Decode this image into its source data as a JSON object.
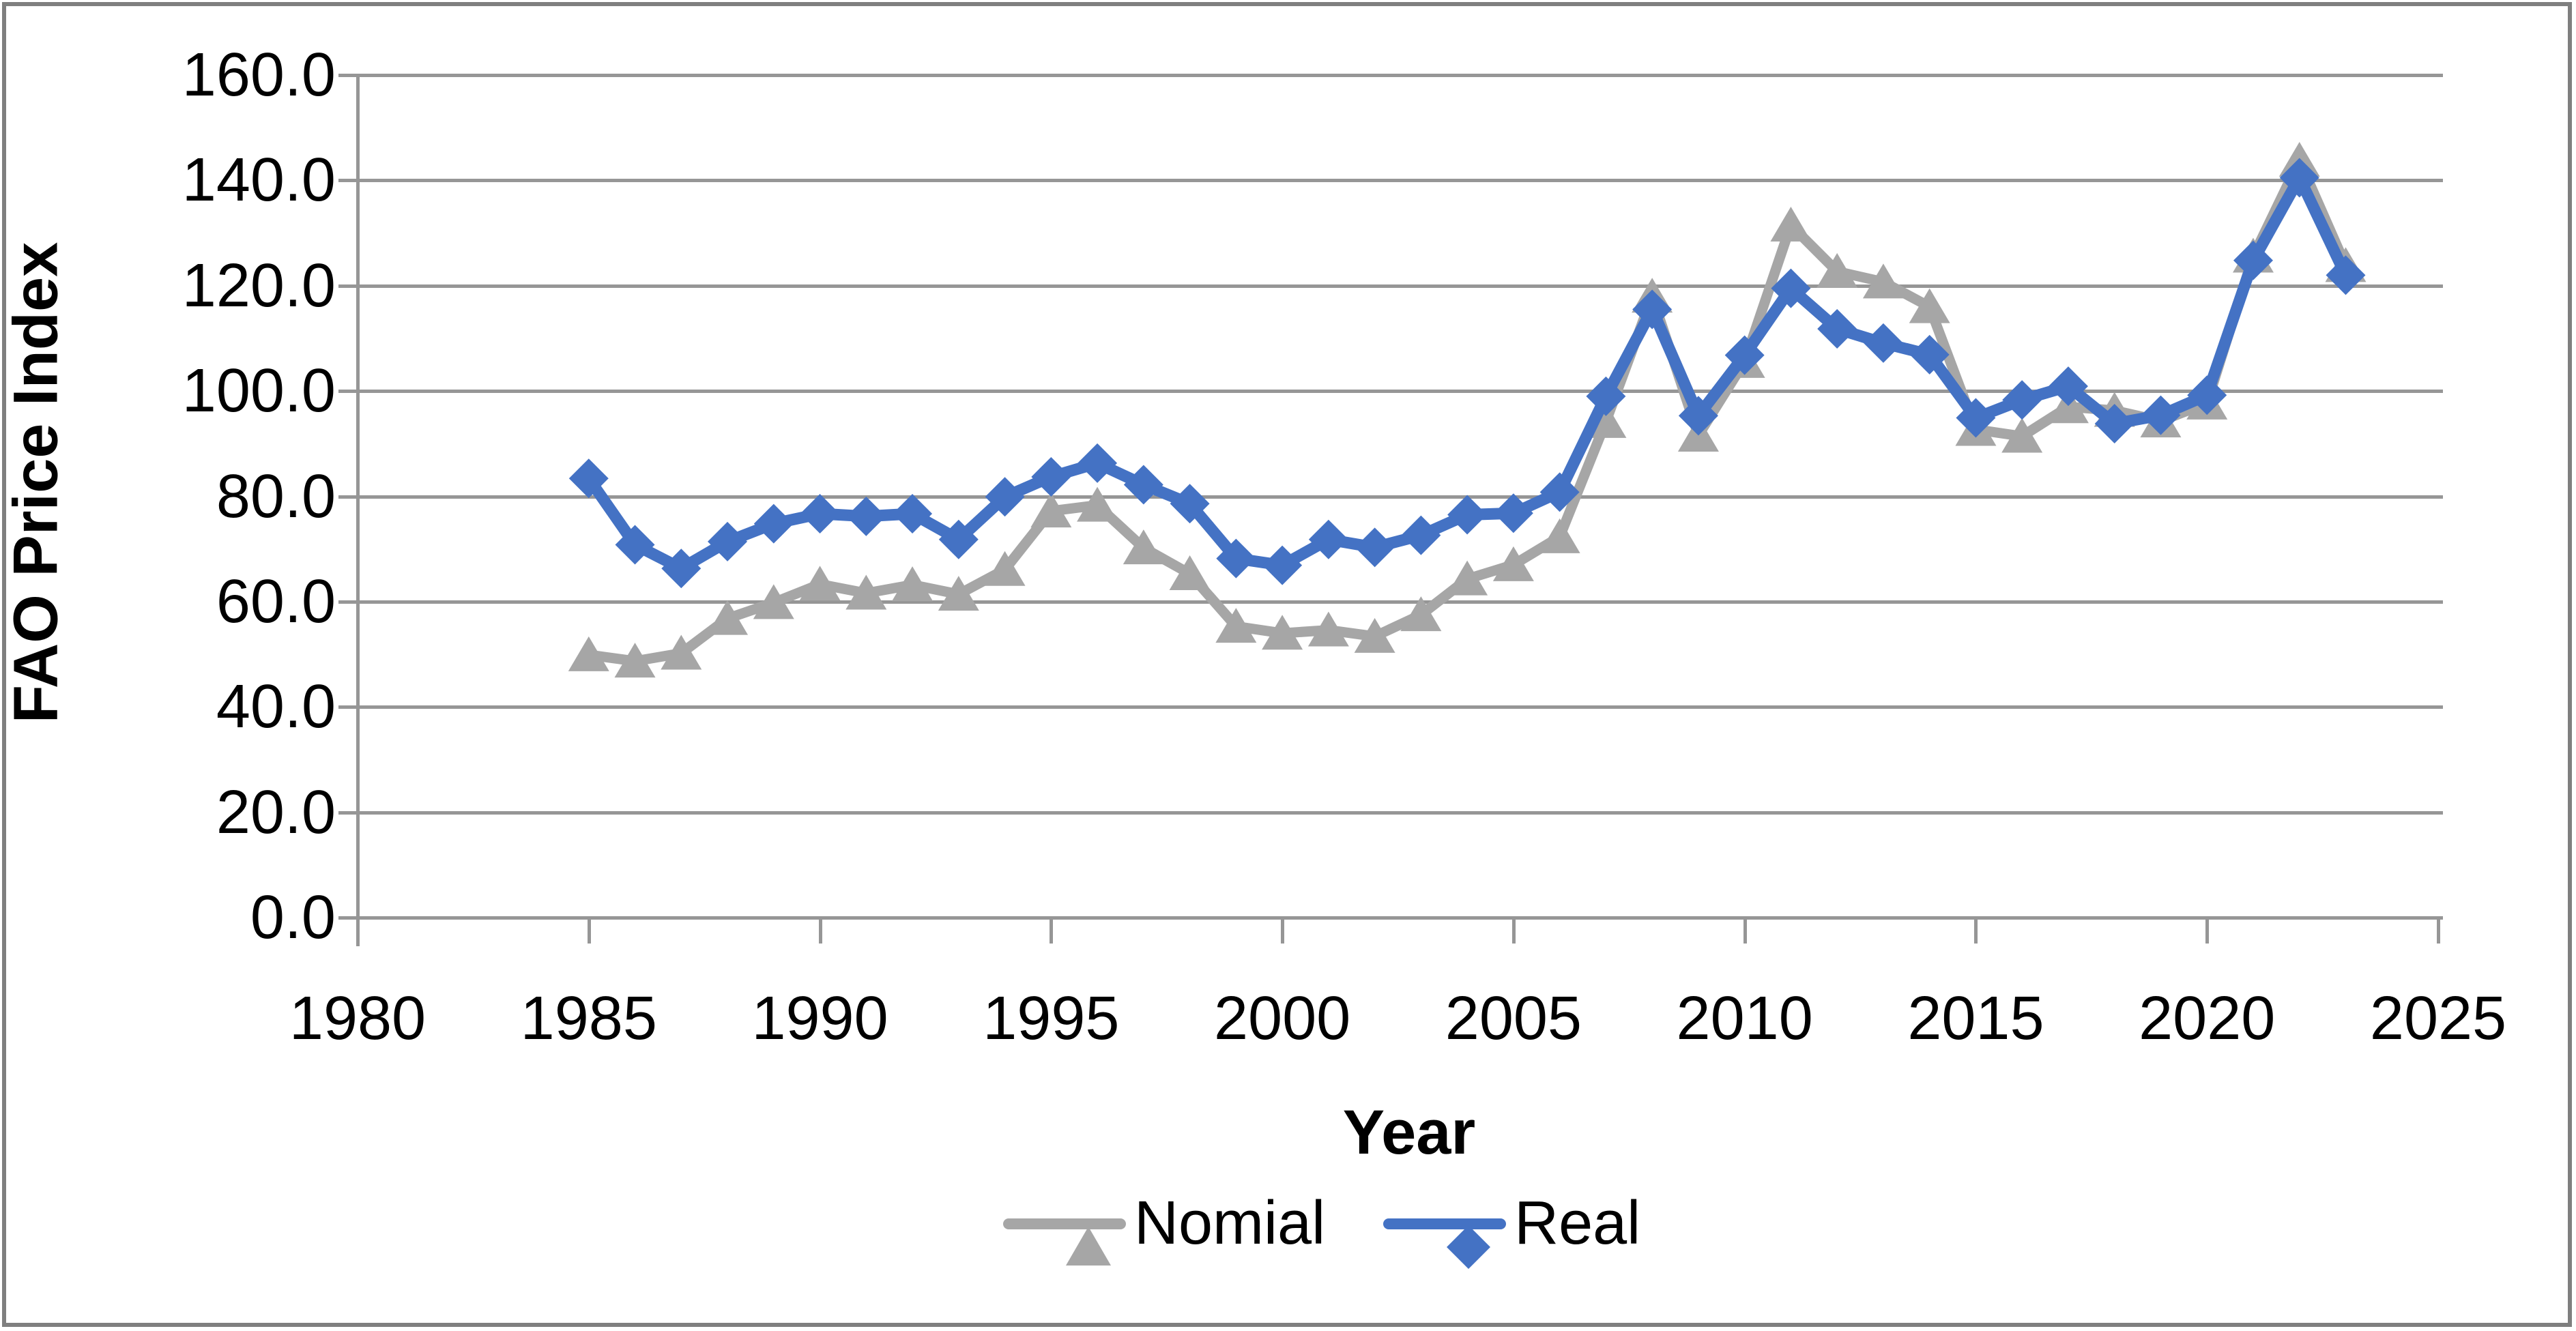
{
  "figure": {
    "y_axis_title": "FAO Price Index",
    "x_axis_title": "Year",
    "legend": [
      {
        "label": "Nomial",
        "series_key": "nominal",
        "marker": "triangle"
      },
      {
        "label": "Real",
        "series_key": "real",
        "marker": "diamond"
      }
    ]
  },
  "colors": {
    "nominal": "#A6A6A6",
    "real": "#4472C4",
    "gridline": "#969696",
    "frame_border": "#7F7F7F",
    "text": "#000000"
  },
  "chart_data": {
    "type": "line",
    "title": "",
    "xlabel": "Year",
    "ylabel": "FAO Price Index",
    "xlim": [
      1980,
      2025
    ],
    "ylim": [
      0,
      160
    ],
    "grid": true,
    "legend_position": "bottom",
    "x_tick_labels": [
      "1980",
      "1985",
      "1990",
      "1995",
      "2000",
      "2005",
      "2010",
      "2015",
      "2020",
      "2025"
    ],
    "x_ticks": [
      1980,
      1985,
      1990,
      1995,
      2000,
      2005,
      2010,
      2015,
      2020,
      2025
    ],
    "y_tick_labels": [
      "0.0",
      "20.0",
      "40.0",
      "60.0",
      "80.0",
      "100.0",
      "120.0",
      "140.0",
      "160.0"
    ],
    "y_ticks": [
      0,
      20,
      40,
      60,
      80,
      100,
      120,
      140,
      160
    ],
    "x": [
      1985,
      1986,
      1987,
      1988,
      1989,
      1990,
      1991,
      1992,
      1993,
      1994,
      1995,
      1996,
      1997,
      1998,
      1999,
      2000,
      2001,
      2002,
      2003,
      2004,
      2005,
      2006,
      2007,
      2008,
      2009,
      2010,
      2011,
      2012,
      2013,
      2014,
      2015,
      2016,
      2017,
      2018,
      2019,
      2020,
      2021,
      2022,
      2023
    ],
    "series": [
      {
        "name": "Nomial",
        "marker": "triangle",
        "color": "#A6A6A6",
        "values": [
          49.9,
          48.7,
          50.2,
          56.8,
          59.8,
          63.3,
          61.6,
          63.2,
          61.4,
          66.1,
          77.2,
          78.3,
          70.2,
          65.3,
          55.3,
          54.0,
          54.6,
          53.4,
          57.5,
          64.3,
          67.0,
          72.3,
          94.2,
          118.0,
          91.6,
          105.6,
          131.5,
          122.7,
          120.7,
          116.0,
          92.7,
          91.4,
          97.0,
          96.3,
          94.3,
          97.7,
          125.6,
          143.8,
          123.8
        ]
      },
      {
        "name": "Real",
        "marker": "diamond",
        "color": "#4472C4",
        "values": [
          83.4,
          70.8,
          66.3,
          71.4,
          74.8,
          76.7,
          76.2,
          76.7,
          71.8,
          79.9,
          83.7,
          86.3,
          82.2,
          78.6,
          68.2,
          66.9,
          71.8,
          70.3,
          72.6,
          76.5,
          76.8,
          80.8,
          99.0,
          115.5,
          95.3,
          106.8,
          119.5,
          111.8,
          109.1,
          106.9,
          94.9,
          98.3,
          100.9,
          93.8,
          95.4,
          99.2,
          124.8,
          140.5,
          122.0
        ]
      }
    ]
  }
}
